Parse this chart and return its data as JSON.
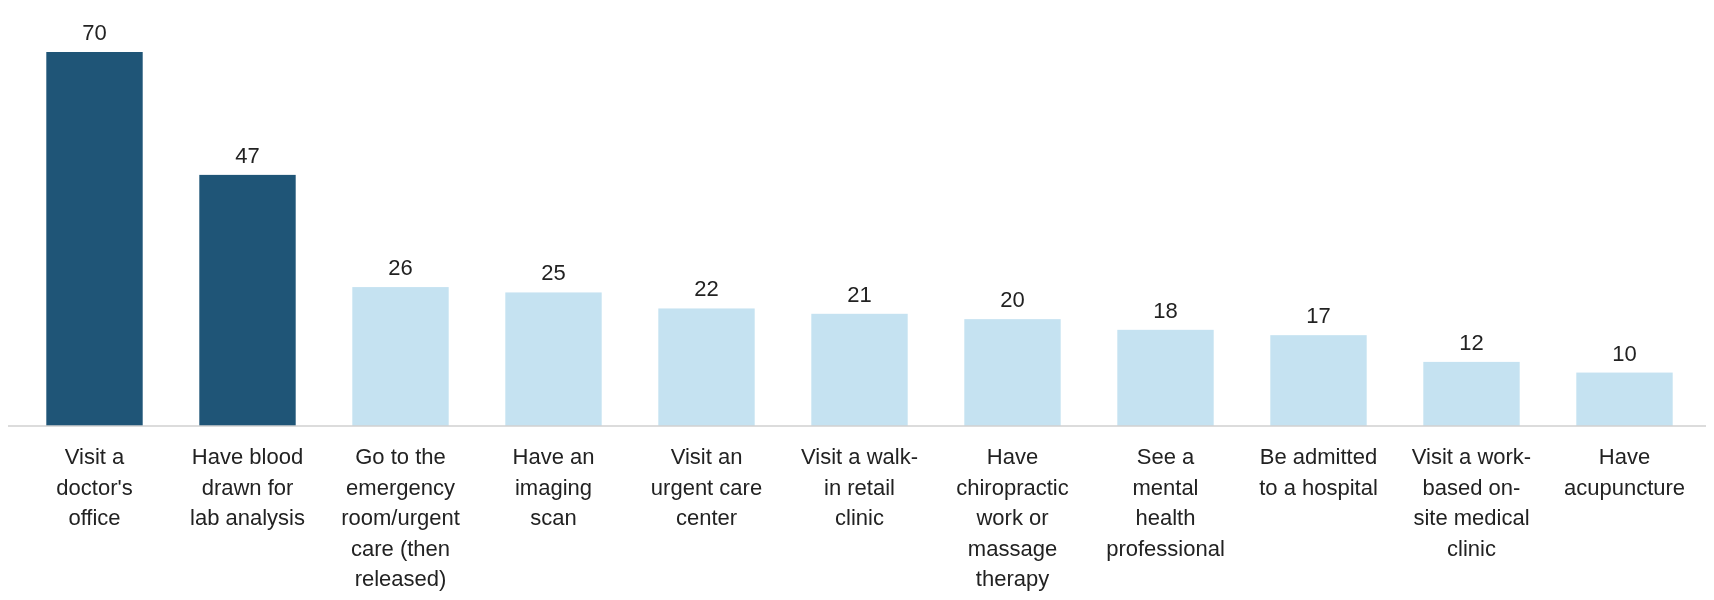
{
  "chart_data": {
    "type": "bar",
    "categories": [
      "Visit a\ndoctor's\noffice",
      "Have blood\ndrawn for\nlab analysis",
      "Go to the\nemergency\nroom/urgent\ncare (then\nreleased)",
      "Have an\nimaging\nscan",
      "Visit an\nurgent care\ncenter",
      "Visit a walk-\nin retail\nclinic",
      "Have\nchiropractic\nwork or\nmassage\ntherapy",
      "See a\nmental\nhealth\nprofessional",
      "Be admitted\nto a hospital",
      "Visit a work-\nbased on-\nsite medical\nclinic",
      "Have\nacupuncture"
    ],
    "values": [
      70,
      47,
      26,
      25,
      22,
      21,
      20,
      18,
      17,
      12,
      10
    ],
    "colors": [
      "#1f5577",
      "#1f5577",
      "#c5e2f1",
      "#c5e2f1",
      "#c5e2f1",
      "#c5e2f1",
      "#c5e2f1",
      "#c5e2f1",
      "#c5e2f1",
      "#c5e2f1",
      "#c5e2f1"
    ],
    "data_labels": true
  }
}
